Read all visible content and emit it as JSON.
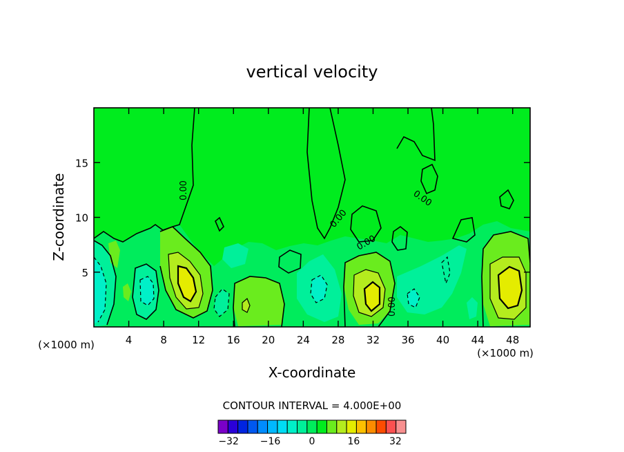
{
  "chart_data": {
    "type": "heatmap",
    "subtype": "filled-contour",
    "title": "vertical velocity",
    "xlabel": "X-coordinate",
    "ylabel": "Z-coordinate",
    "x_unit_left": "(×1000 m)",
    "x_unit_right": "(×1000 m)",
    "xlim": [
      0,
      50
    ],
    "ylim": [
      0,
      20
    ],
    "x_ticks": [
      4,
      8,
      12,
      16,
      20,
      24,
      28,
      32,
      36,
      40,
      44,
      48
    ],
    "y_ticks": [
      5,
      10,
      15
    ],
    "grid": false,
    "contour_interval_text": "CONTOUR INTERVAL = 4.000E+00",
    "contour_interval": 4.0,
    "contour_labels": [
      "0.00",
      "0.00",
      "0.00",
      "0.00",
      "0.00"
    ],
    "colorbar": {
      "levels": [
        -36,
        -32,
        -28,
        -24,
        -20,
        -16,
        -12,
        -8,
        -4,
        0,
        4,
        8,
        12,
        16,
        20,
        24,
        28,
        32,
        36
      ],
      "tick_labels": [
        "−32",
        "−16",
        "0",
        "16",
        "32"
      ],
      "tick_values": [
        -32,
        -16,
        0,
        16,
        32
      ],
      "colors": [
        "#7a00c8",
        "#2a00d8",
        "#0024e0",
        "#0058f0",
        "#008cff",
        "#00b8ff",
        "#00dcf4",
        "#00f0c8",
        "#00f09a",
        "#00ec5c",
        "#00ec1e",
        "#6aec1e",
        "#b4ec1e",
        "#e4ec00",
        "#fcc000",
        "#fc8c00",
        "#fc4c00",
        "#fc5050",
        "#f89090"
      ],
      "placement": "bottom"
    },
    "features": [
      {
        "type": "updraft",
        "x": 10.5,
        "z": 4.0,
        "w_max": 14
      },
      {
        "type": "downdraft",
        "x": 1.2,
        "z": 4.0,
        "w_min": -8
      },
      {
        "type": "downdraft",
        "x": 6.0,
        "z": 3.0,
        "w_min": -8
      },
      {
        "type": "updraft",
        "x": 17.5,
        "z": 2.0,
        "w_max": 6
      },
      {
        "type": "downdraft",
        "x": 25.5,
        "z": 3.0,
        "w_min": -6
      },
      {
        "type": "updraft",
        "x": 31.8,
        "z": 3.0,
        "w_max": 14
      },
      {
        "type": "downdraft",
        "x": 37.0,
        "z": 3.0,
        "w_min": -4
      },
      {
        "type": "updraft",
        "x": 47.0,
        "z": 3.5,
        "w_max": 16
      }
    ]
  }
}
